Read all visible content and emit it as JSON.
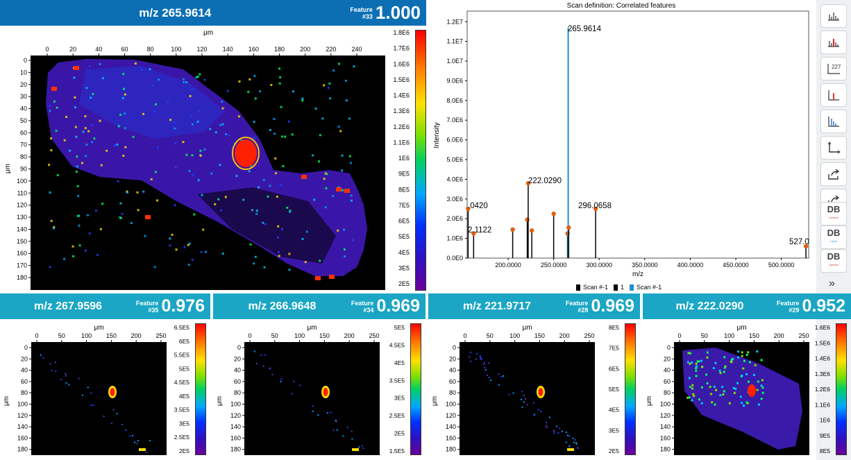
{
  "main_panel": {
    "mz": "m/z 265.9614",
    "feature_label": "Feature",
    "feature_num": "#33",
    "score": "1.000",
    "x_unit": "μm",
    "y_unit": "μm",
    "x_ticks": [
      "0",
      "20",
      "40",
      "60",
      "80",
      "100",
      "120",
      "140",
      "160",
      "180",
      "200",
      "220",
      "240"
    ],
    "y_ticks": [
      "0",
      "10",
      "20",
      "30",
      "40",
      "50",
      "60",
      "70",
      "80",
      "90",
      "100",
      "110",
      "120",
      "130",
      "140",
      "150",
      "160",
      "170",
      "180"
    ],
    "colorbar_ticks": [
      "1.8E6",
      "1.7E6",
      "1.6E6",
      "1.5E6",
      "1.4E6",
      "1.3E6",
      "1.2E6",
      "1.1E6",
      "1E6",
      "9E5",
      "8E5",
      "7E5",
      "6E5",
      "5E5",
      "4E5",
      "3E5",
      "2E5"
    ]
  },
  "spectrum": {
    "title": "Scan definition: Correlated features",
    "ylabel": "Intensity",
    "xlabel": "m/z",
    "y_ticks": [
      "1.2E7",
      "1.1E7",
      "1.0E7",
      "9.0E6",
      "8.0E6",
      "7.0E6",
      "6.0E6",
      "5.0E6",
      "4.0E6",
      "3.0E6",
      "2.0E6",
      "1.0E6",
      "0.0E0"
    ],
    "x_ticks": [
      "200.0000",
      "250.0000",
      "300.0000",
      "350.0000",
      "400.0000",
      "450.0000",
      "500.0000"
    ],
    "peak_labels": [
      ".0420",
      "2.1122",
      "222.0290",
      "265.9614",
      "296.0658",
      "527.0"
    ],
    "legend": [
      "Scan #-1",
      "1",
      "Scan #-1"
    ],
    "colors": {
      "highlight": "#1f8fd0",
      "peak": "#000000",
      "marker": "#e06010"
    }
  },
  "chart_data": {
    "type": "bar",
    "title": "Scan definition: Correlated features",
    "xlabel": "m/z",
    "ylabel": "Intensity",
    "xlim": [
      155,
      530
    ],
    "ylim": [
      0,
      12500000
    ],
    "x": [
      156.042,
      162.112,
      205.0,
      221.0,
      222.029,
      226.0,
      250.0,
      265.2,
      265.9614,
      266.5,
      296.0658,
      527.0
    ],
    "values": [
      2500000,
      1250000,
      1450000,
      1950000,
      3800000,
      1400000,
      2250000,
      1250000,
      11700000,
      1550000,
      2500000,
      600000
    ],
    "highlight_x": 265.9614
  },
  "small_panels": [
    {
      "mz": "m/z 267.9596",
      "feature_label": "Feature",
      "feature_num": "#35",
      "score": "0.976",
      "cbar": [
        "6.5E5",
        "6E5",
        "5.5E5",
        "5E5",
        "4.5E5",
        "4E5",
        "3.5E5",
        "3E5",
        "2.5E5",
        "2E5"
      ]
    },
    {
      "mz": "m/z 266.9648",
      "feature_label": "Feature",
      "feature_num": "#34",
      "score": "0.969",
      "cbar": [
        "5E5",
        "4.5E5",
        "4E5",
        "3.5E5",
        "3E5",
        "2.5E5",
        "2E5",
        "1.5E5"
      ]
    },
    {
      "mz": "m/z 221.9717",
      "feature_label": "Feature",
      "feature_num": "#28",
      "score": "0.969",
      "cbar": [
        "8E5",
        "7E5",
        "6E5",
        "5E5",
        "4E5",
        "3E5",
        "2E5"
      ]
    },
    {
      "mz": "m/z 222.0290",
      "feature_label": "Feature",
      "feature_num": "#29",
      "score": "0.952",
      "cbar": [
        "1.6E6",
        "1.5E6",
        "1.4E6",
        "1.3E6",
        "1.2E6",
        "1.1E6",
        "1E6",
        "9E5",
        "8E5"
      ]
    }
  ],
  "small_axes": {
    "unit": "μm",
    "x_ticks": [
      "0",
      "50",
      "100",
      "150",
      "200",
      "250"
    ],
    "y_ticks": [
      "0",
      "20",
      "40",
      "60",
      "80",
      "100",
      "120",
      "140",
      "160",
      "180"
    ]
  },
  "toolbar": {
    "buttons": [
      "bar-chart-icon",
      "colored-bar-chart-icon",
      "axis-label-icon",
      "red-bar-icon",
      "blue-bars-icon",
      "axes-icon",
      "export-icon",
      "share-icon"
    ],
    "db_buttons": [
      {
        "label": "DB",
        "sub": "Custom",
        "color": "#d03030"
      },
      {
        "label": "DB",
        "sub": "Lipids",
        "color": "#30a0e0"
      },
      {
        "label": "DB",
        "sub": "Spectra",
        "color": "#d04040"
      }
    ],
    "more": "»"
  }
}
